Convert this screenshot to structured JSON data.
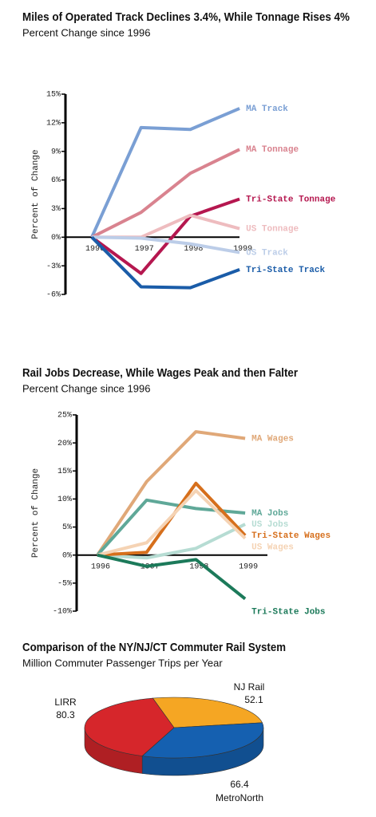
{
  "chart_data": [
    {
      "type": "line",
      "title": "Miles of Operated Track Declines 3.4%, While Tonnage Rises 4%",
      "subtitle": "Percent Change since 1996",
      "y_label": "Percent of Change",
      "categories": [
        "1996",
        "1997",
        "1998",
        "1999"
      ],
      "ylim": [
        -6,
        15
      ],
      "yticks": [
        {
          "value": -6,
          "label": "-6%"
        },
        {
          "value": -3,
          "label": "-3%"
        },
        {
          "value": 0,
          "label": "0%"
        },
        {
          "value": 3,
          "label": "3%"
        },
        {
          "value": 6,
          "label": "6%"
        },
        {
          "value": 9,
          "label": "9%"
        },
        {
          "value": 12,
          "label": "12%"
        },
        {
          "value": 15,
          "label": "15%"
        }
      ],
      "series": [
        {
          "name": "MA Track",
          "color": "#7a9fd4",
          "values": [
            0,
            11.5,
            11.3,
            13.5
          ]
        },
        {
          "name": "MA Tonnage",
          "color": "#d9838f",
          "values": [
            0,
            2.6,
            6.7,
            9.2
          ]
        },
        {
          "name": "Tri-State Tonnage",
          "color": "#b5174f",
          "values": [
            0,
            -3.8,
            2.2,
            4.0
          ]
        },
        {
          "name": "US Tonnage",
          "color": "#eebcbf",
          "values": [
            0,
            0,
            2.3,
            0.9
          ]
        },
        {
          "name": "US Track",
          "color": "#bccde8",
          "values": [
            0,
            -0.1,
            -0.7,
            -1.6
          ]
        },
        {
          "name": "Tri-State Track",
          "color": "#1a5ca8",
          "values": [
            0,
            -5.2,
            -5.3,
            -3.4
          ]
        }
      ]
    },
    {
      "type": "line",
      "title": "Rail Jobs Decrease, While Wages Peak and then Falter",
      "subtitle": "Percent Change since 1996",
      "y_label": "Percent of Change",
      "categories": [
        "1996",
        "1997",
        "1998",
        "1999"
      ],
      "ylim": [
        -10,
        25
      ],
      "yticks": [
        {
          "value": -10,
          "label": "-10%"
        },
        {
          "value": -5,
          "label": "-5%"
        },
        {
          "value": 0,
          "label": "0%"
        },
        {
          "value": 5,
          "label": "5%"
        },
        {
          "value": 10,
          "label": "10%"
        },
        {
          "value": 15,
          "label": "15%"
        },
        {
          "value": 20,
          "label": "20%"
        },
        {
          "value": 25,
          "label": "25%"
        }
      ],
      "series": [
        {
          "name": "MA Wages",
          "color": "#e0a878",
          "values": [
            0,
            13.1,
            22,
            20.8
          ]
        },
        {
          "name": "MA Jobs",
          "color": "#5fa898",
          "values": [
            0,
            9.8,
            8.3,
            7.5
          ]
        },
        {
          "name": "US Jobs",
          "color": "#b6dcd3",
          "values": [
            0,
            -0.5,
            1.2,
            5.5
          ]
        },
        {
          "name": "Tri-State Wages",
          "color": "#d66f1c",
          "values": [
            0,
            0.5,
            12.8,
            3.5
          ]
        },
        {
          "name": "US Wages",
          "color": "#f5d3b4",
          "values": [
            0,
            2.2,
            11.5,
            3.0
          ]
        },
        {
          "name": "Tri-State Jobs",
          "color": "#1c7a5a",
          "values": [
            0,
            -2.0,
            -0.8,
            -7.8
          ]
        }
      ]
    },
    {
      "type": "pie",
      "title": "Comparison of the NY/NJ/CT Commuter Rail System",
      "subtitle": "Million Commuter Passenger Trips per Year",
      "categories": [
        "NJ Rail",
        "MetroNorth",
        "LIRR"
      ],
      "values": [
        52.1,
        66.4,
        80.3
      ],
      "colors": [
        "#f5a623",
        "#1560b0",
        "#d6262b"
      ]
    }
  ]
}
